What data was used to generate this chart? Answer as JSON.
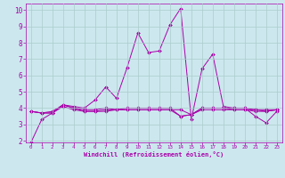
{
  "xlabel": "Windchill (Refroidissement éolien,°C)",
  "bg_color": "#cce8ee",
  "grid_color": "#aacccc",
  "line_color": "#aa00aa",
  "xticks": [
    0,
    1,
    2,
    3,
    4,
    5,
    6,
    7,
    8,
    9,
    10,
    11,
    12,
    13,
    14,
    15,
    16,
    17,
    18,
    19,
    20,
    21,
    22,
    23
  ],
  "yticks": [
    2,
    3,
    4,
    5,
    6,
    7,
    8,
    9,
    10
  ],
  "line1_y": [
    1.9,
    3.3,
    3.7,
    4.2,
    4.1,
    4.0,
    4.5,
    5.3,
    4.6,
    6.5,
    8.6,
    7.4,
    7.5,
    9.1,
    10.1,
    3.3,
    6.4,
    7.3,
    4.1,
    4.0,
    4.0,
    3.5,
    3.1,
    3.8
  ],
  "line2_y": [
    3.8,
    3.7,
    3.7,
    4.2,
    4.0,
    3.8,
    3.8,
    3.8,
    3.9,
    3.9,
    3.9,
    3.9,
    3.9,
    3.9,
    3.9,
    3.6,
    3.9,
    3.9,
    3.9,
    3.9,
    3.9,
    3.8,
    3.8,
    3.9
  ],
  "line3_y": [
    3.8,
    3.7,
    3.7,
    4.1,
    3.9,
    3.8,
    3.8,
    3.9,
    3.9,
    3.9,
    3.9,
    3.9,
    3.9,
    3.9,
    3.5,
    3.6,
    4.0,
    4.0,
    4.0,
    3.9,
    3.9,
    3.9,
    3.8,
    3.9
  ],
  "line4_y": [
    3.8,
    3.7,
    3.8,
    4.2,
    4.0,
    3.9,
    3.9,
    4.0,
    3.9,
    4.0,
    4.0,
    4.0,
    4.0,
    4.0,
    3.5,
    3.6,
    4.0,
    4.0,
    4.0,
    4.0,
    4.0,
    3.9,
    3.9,
    3.9
  ]
}
